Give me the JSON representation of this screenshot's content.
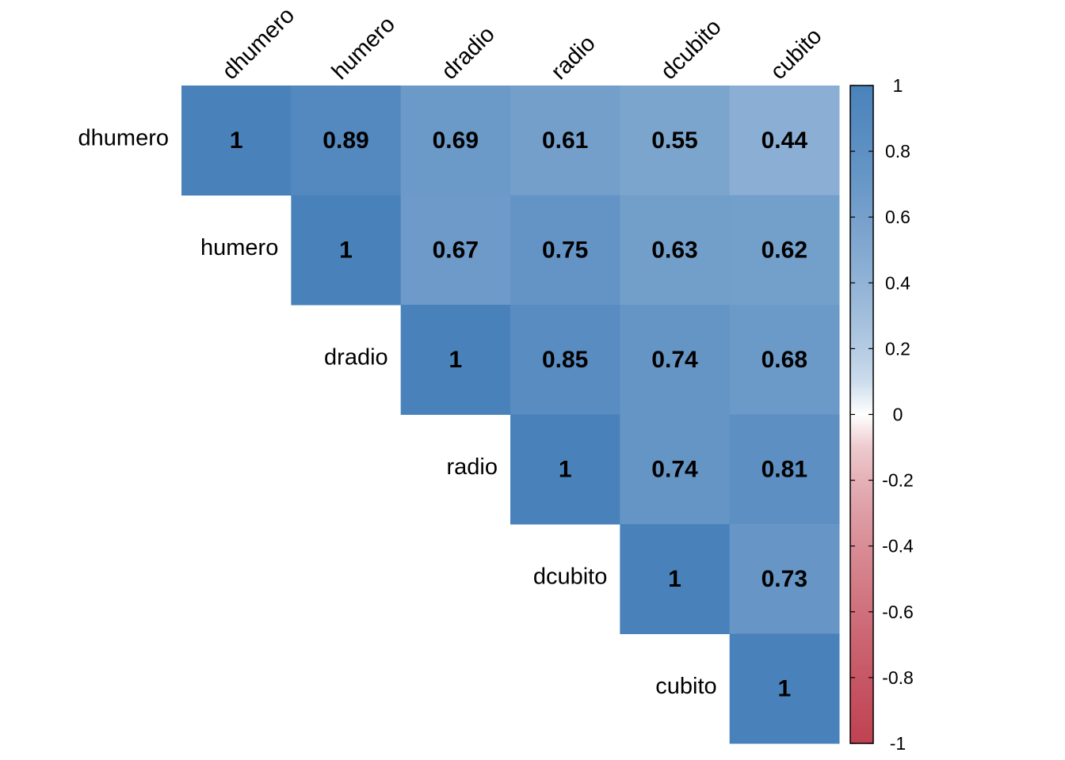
{
  "chart_data": {
    "type": "heatmap",
    "subtype": "correlation-matrix-upper-triangle",
    "title": "",
    "variables": [
      "dhumero",
      "humero",
      "dradio",
      "radio",
      "dcubito",
      "cubito"
    ],
    "matrix": [
      [
        1,
        0.89,
        0.69,
        0.61,
        0.55,
        0.44
      ],
      [
        null,
        1,
        0.67,
        0.75,
        0.63,
        0.62
      ],
      [
        null,
        null,
        1,
        0.85,
        0.74,
        0.68
      ],
      [
        null,
        null,
        null,
        1,
        0.74,
        0.81
      ],
      [
        null,
        null,
        null,
        null,
        1,
        0.73
      ],
      [
        null,
        null,
        null,
        null,
        null,
        1
      ]
    ],
    "value_labels": [
      [
        "1",
        "0.89",
        "0.69",
        "0.61",
        "0.55",
        "0.44"
      ],
      [
        "",
        "1",
        "0.67",
        "0.75",
        "0.63",
        "0.62"
      ],
      [
        "",
        "",
        "1",
        "0.85",
        "0.74",
        "0.68"
      ],
      [
        "",
        "",
        "",
        "1",
        "0.74",
        "0.81"
      ],
      [
        "",
        "",
        "",
        "",
        "1",
        "0.73"
      ],
      [
        "",
        "",
        "",
        "",
        "",
        "1"
      ]
    ],
    "colorbar": {
      "range": [
        -1,
        1
      ],
      "ticks": [
        1,
        0.8,
        0.6,
        0.4,
        0.2,
        0,
        -0.2,
        -0.4,
        -0.6,
        -0.8,
        -1
      ],
      "tick_labels": [
        "1",
        "0.8",
        "0.6",
        "0.4",
        "0.2",
        "0",
        "-0.2",
        "-0.4",
        "-0.6",
        "-0.8",
        "-1"
      ],
      "position": "right",
      "colors": {
        "negative": "#b2182b",
        "neutral": "#ffffff",
        "positive": "#2166ac"
      }
    },
    "colors": {
      "text": "#000000",
      "background": "#ffffff"
    }
  }
}
